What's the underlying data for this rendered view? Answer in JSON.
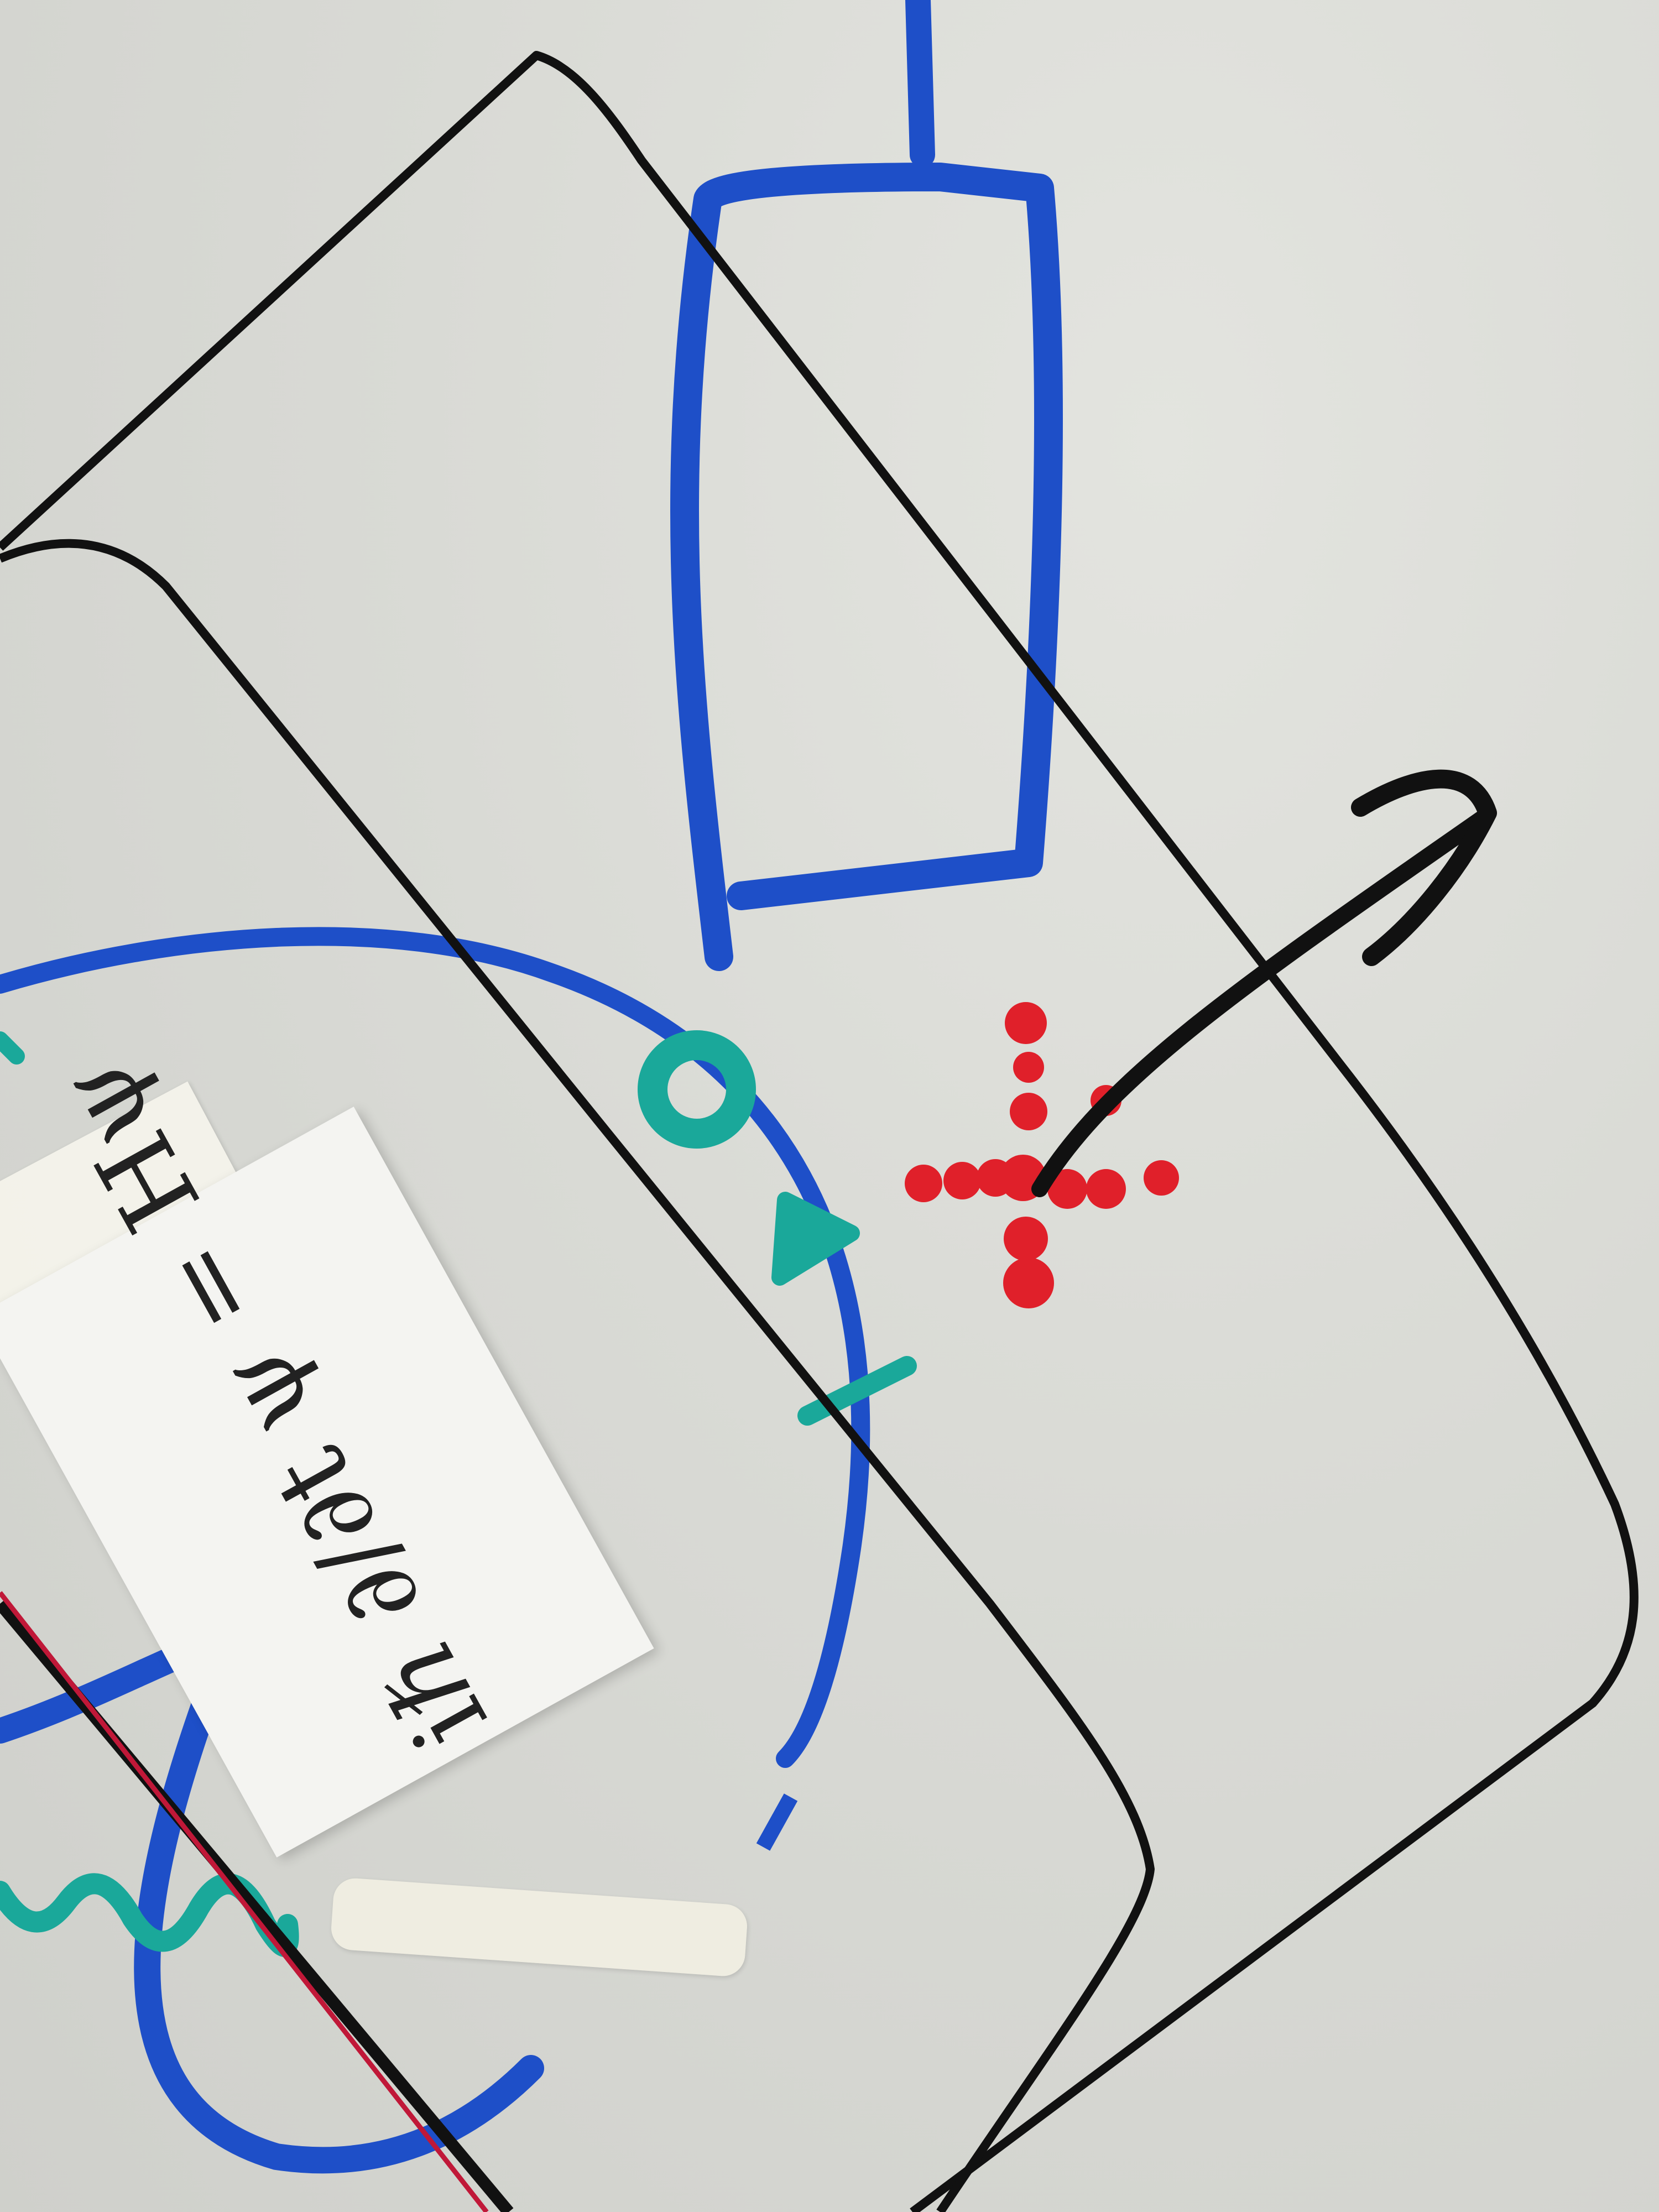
{
  "note": {
    "equation": "iℏ ∂/∂t ψ = Hψ"
  },
  "colors": {
    "board": "#d9dbd6",
    "black_marker": "#111111",
    "blue_marker": "#1e4fc8",
    "teal_marker": "#1aa89a",
    "red_marker": "#e0202a"
  }
}
